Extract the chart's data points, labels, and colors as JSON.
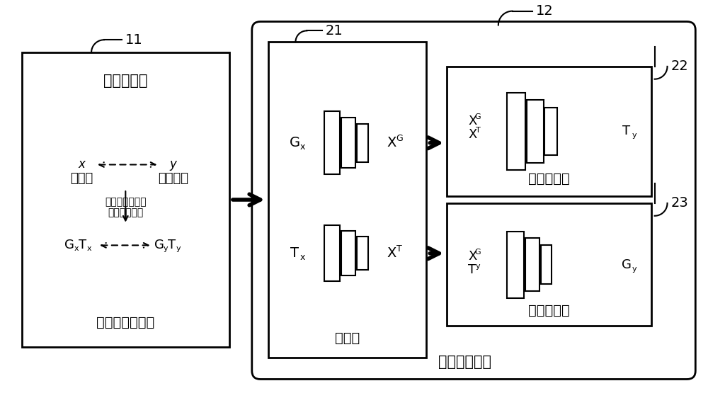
{
  "bg_color": "#ffffff",
  "line_color": "#000000",
  "fig_width": 10.0,
  "fig_height": 5.62,
  "label_fenjishuju": "分子数据集",
  "label_shujuyuchuli": "数据预处理模块",
  "label_num11": "11",
  "label_fenzishengcheng": "分子生成模型",
  "label_num12": "12",
  "label_bianmaq": "编码器",
  "label_num21": "21",
  "label_decoder1": "第一解码器",
  "label_num22": "22",
  "label_decoder2": "第二解码器",
  "label_num23": "23",
  "label_yuanfenzi": "源分子",
  "label_mubiaofen": "目标分子",
  "label_x": "x",
  "label_y": "y",
  "label_goujian": "构建分子图结构",
  "label_helian": "和联结树结构",
  "label_Gx": "G",
  "label_x_sup": "x",
  "label_Tx": "T",
  "label_Gy": "G",
  "label_y_sup": "y",
  "label_Ty": "T",
  "label_XG": "X",
  "label_G_sup": "G",
  "label_XT": "X",
  "label_T_sup": "T"
}
